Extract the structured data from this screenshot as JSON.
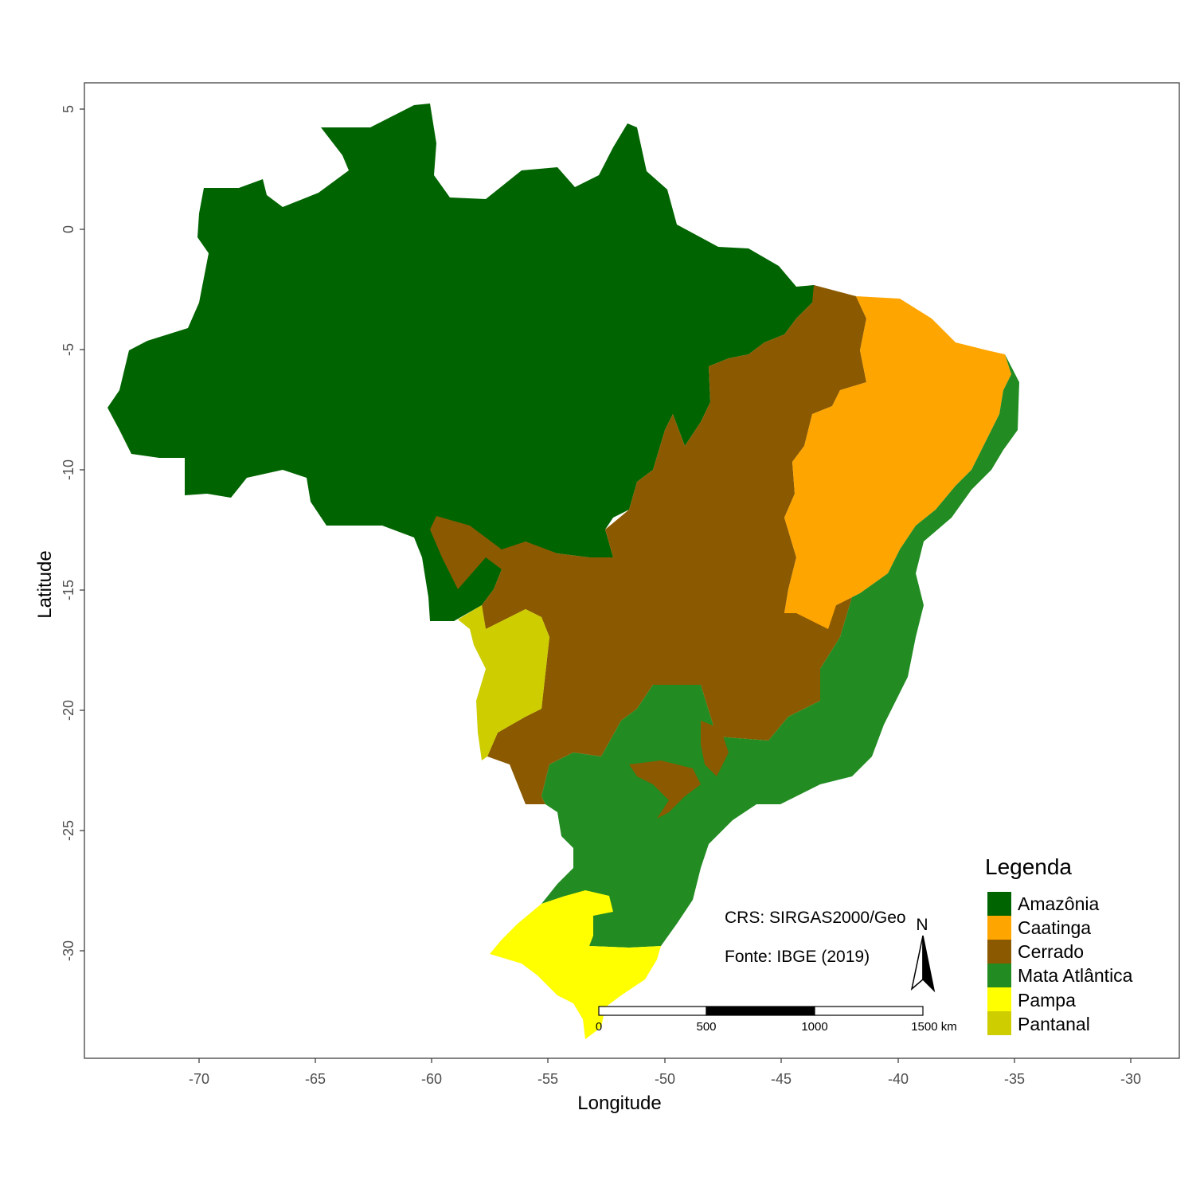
{
  "map": {
    "x_axis": {
      "title": "Longitude",
      "ticks": [
        -70,
        -65,
        -60,
        -55,
        -50,
        -45,
        -40,
        -35,
        -30
      ],
      "limits": [
        -74.9,
        -27.6
      ]
    },
    "y_axis": {
      "title": "Latitude",
      "ticks": [
        5,
        0,
        -5,
        -10,
        -15,
        -20,
        -25,
        -30
      ],
      "limits": [
        -35.1,
        6.1
      ]
    },
    "legend": {
      "title": "Legenda",
      "items": [
        {
          "label": "Amazônia",
          "color": "#006400"
        },
        {
          "label": "Caatinga",
          "color": "#FFA500"
        },
        {
          "label": "Cerrado",
          "color": "#8B5A00"
        },
        {
          "label": "Mata Atlântica",
          "color": "#228B22"
        },
        {
          "label": "Pampa",
          "color": "#FFFF00"
        },
        {
          "label": "Pantanal",
          "color": "#CDCD00"
        }
      ]
    },
    "crs_note": "CRS: SIRGAS2000/Geo",
    "source_note": "Fonte: IBGE (2019)",
    "north_arrow_label": "N",
    "scale_bar": {
      "labels": [
        "0",
        "500",
        "1000",
        "1500 km"
      ]
    }
  }
}
